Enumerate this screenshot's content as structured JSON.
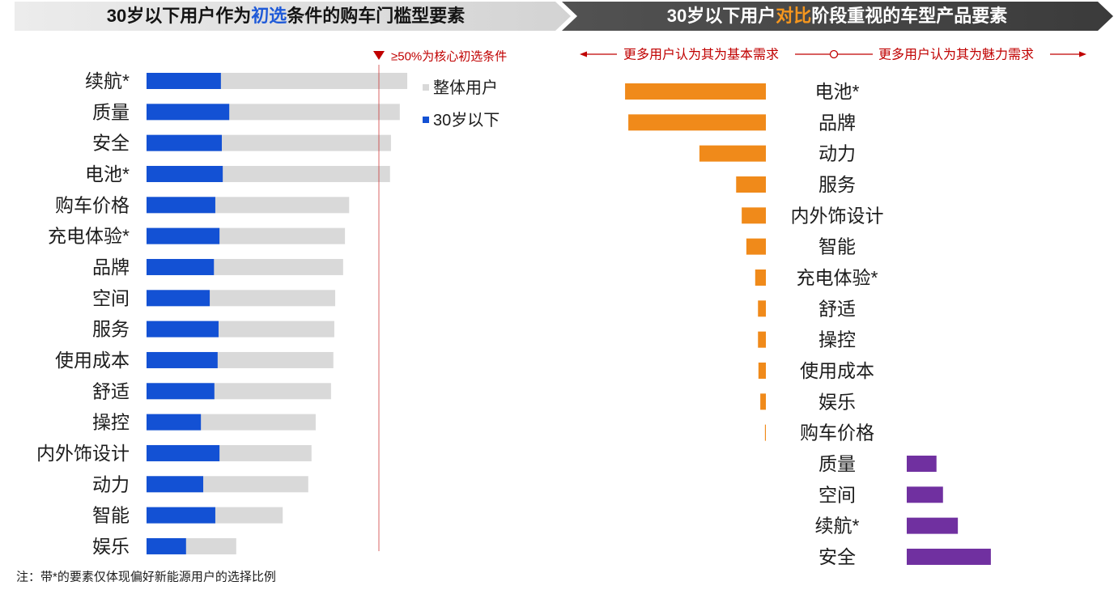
{
  "headers": {
    "left": {
      "pre": "30岁以下用户作为",
      "highlight": "初选",
      "post": "条件的购车门槛型要素",
      "highlight_color": "#1f5ad8"
    },
    "right": {
      "pre": "30岁以下用户",
      "highlight": "对比",
      "post": "阶段重视的车型产品要素",
      "highlight_color": "#f5961e"
    }
  },
  "note": "注：带*的要素仅体现偏好新能源用户的选择比例",
  "chart_data": [
    {
      "type": "bar",
      "orientation": "horizontal",
      "categories": [
        "续航*",
        "质量",
        "安全",
        "电池*",
        "购车价格",
        "充电体验*",
        "品牌",
        "空间",
        "服务",
        "使用成本",
        "舒适",
        "操控",
        "内外饰设计",
        "动力",
        "智能",
        "娱乐"
      ],
      "series": [
        {
          "name": "整体用户",
          "color": "#d9d9d9",
          "values": [
            56.1,
            54.5,
            52.6,
            52.4,
            43.6,
            42.7,
            42.3,
            40.6,
            40.4,
            40.2,
            39.7,
            36.4,
            35.5,
            34.8,
            29.3,
            19.3
          ]
        },
        {
          "name": "30岁以下",
          "color": "#1351d4",
          "values": [
            16.0,
            17.8,
            16.2,
            16.4,
            14.8,
            15.7,
            14.5,
            13.6,
            15.5,
            15.3,
            14.6,
            11.7,
            15.7,
            12.2,
            14.8,
            8.5
          ]
        }
      ],
      "reference_line": {
        "value": 50,
        "label": "≥50%为核心初选条件",
        "color": "#c00000"
      },
      "legend": "top-right",
      "grid": false
    },
    {
      "type": "bar",
      "orientation": "horizontal",
      "diverging": true,
      "categories": [
        "电池*",
        "品牌",
        "动力",
        "服务",
        "内外饰设计",
        "智能",
        "充电体验*",
        "舒适",
        "操控",
        "使用成本",
        "娱乐",
        "购车价格",
        "质量",
        "空间",
        "续航*",
        "安全"
      ],
      "values": [
        -30.3,
        -29.6,
        -14.3,
        -6.4,
        -5.2,
        -4.2,
        -2.3,
        -1.7,
        -1.7,
        -1.6,
        -1.2,
        -0.2,
        6.4,
        7.8,
        11.0,
        18.1
      ],
      "negative_label": "更多用户认为其为基本需求",
      "positive_label": "更多用户认为其为魅力需求",
      "negative_color": "#f08a1a",
      "positive_color": "#7030a0",
      "legend": "top",
      "grid": false
    }
  ]
}
